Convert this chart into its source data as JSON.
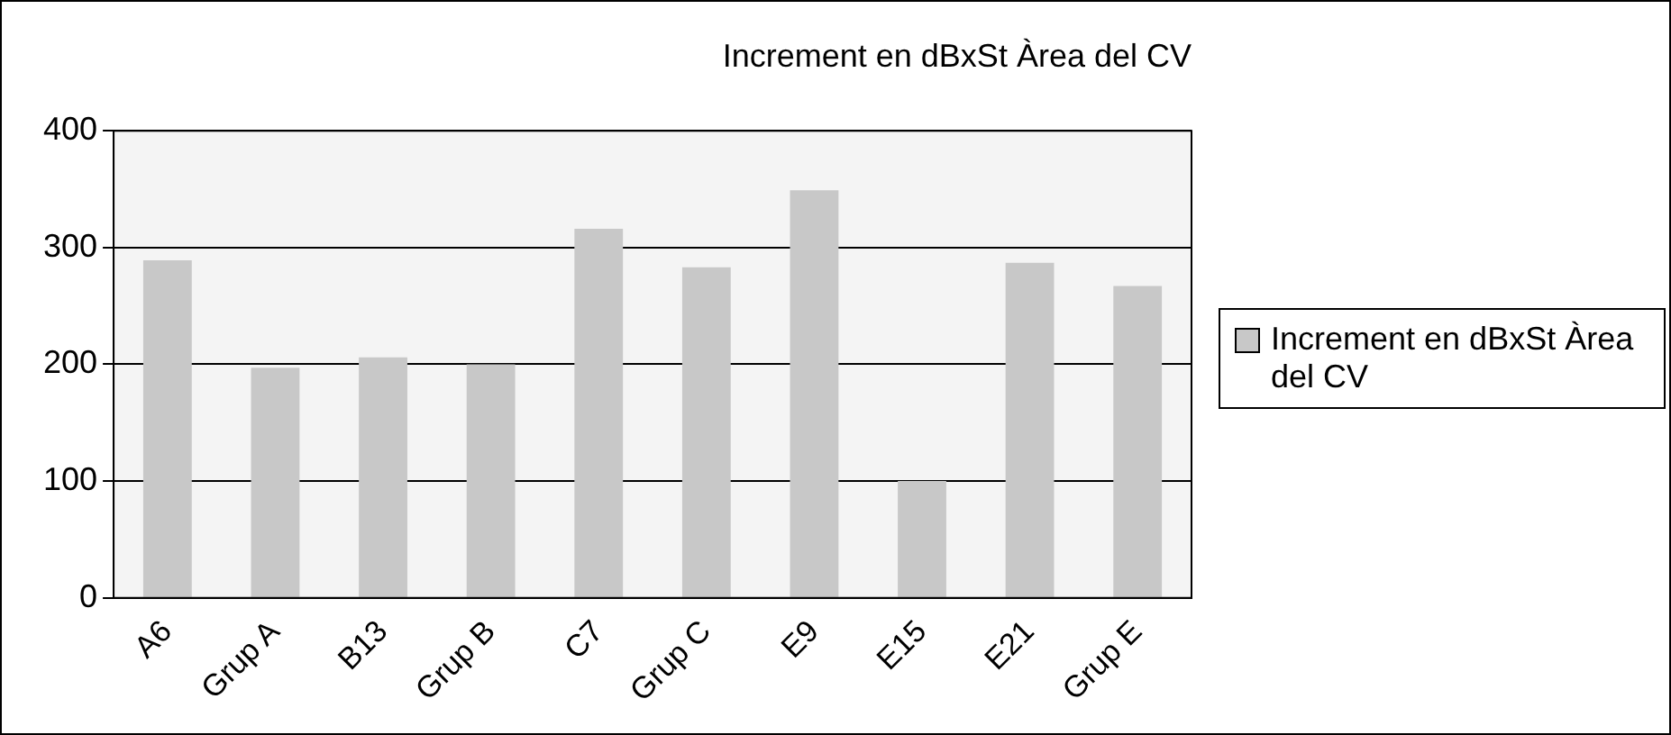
{
  "chart_data": {
    "type": "bar",
    "title": "Increment en dBxSt Àrea del CV",
    "categories": [
      "A6",
      "Grup A",
      "B13",
      "Grup B",
      "C7",
      "Grup C",
      "E9",
      "E15",
      "E21",
      "Grup E"
    ],
    "series": [
      {
        "name": "Increment en dBxSt Àrea del CV",
        "color": "#c8c8c8",
        "values": [
          289,
          197,
          206,
          200,
          316,
          283,
          349,
          100,
          287,
          267
        ]
      }
    ],
    "ylim": [
      0,
      400
    ],
    "yticks": [
      0,
      100,
      200,
      300,
      400
    ],
    "grid": "y",
    "legend": "right"
  }
}
